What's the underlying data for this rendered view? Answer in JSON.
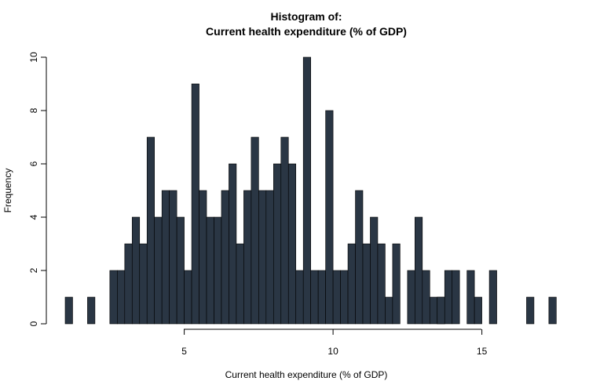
{
  "chart_data": {
    "type": "bar",
    "title_line1": "Histogram of:",
    "title_line2": "Current health expenditure (% of GDP)",
    "xlabel": "Current health expenditure (% of GDP)",
    "ylabel": "Frequency",
    "xlim": [
      1,
      17.25
    ],
    "ylim": [
      0,
      10
    ],
    "x_ticks": [
      5,
      10,
      15
    ],
    "y_ticks": [
      0,
      2,
      4,
      6,
      8,
      10
    ],
    "bin_start": 1.0,
    "bin_width": 0.25,
    "values": [
      1,
      0,
      0,
      1,
      0,
      0,
      2,
      2,
      3,
      4,
      3,
      7,
      4,
      5,
      5,
      4,
      2,
      9,
      5,
      4,
      4,
      5,
      6,
      3,
      5,
      7,
      5,
      5,
      6,
      7,
      6,
      2,
      10,
      2,
      2,
      8,
      2,
      2,
      3,
      5,
      3,
      4,
      3,
      1,
      3,
      0,
      2,
      4,
      2,
      1,
      1,
      2,
      2,
      0,
      2,
      1,
      0,
      2,
      0,
      0,
      0,
      0,
      0,
      0,
      0,
      0,
      0,
      0,
      0,
      0,
      0,
      0,
      0,
      0,
      0,
      0,
      0,
      0,
      0,
      0,
      0,
      0,
      0,
      0,
      0,
      0,
      0,
      0,
      0,
      0,
      0,
      0,
      0,
      0,
      0,
      0,
      0,
      0,
      0,
      0,
      0,
      0,
      0,
      0,
      0,
      0,
      0,
      0,
      0,
      0,
      0,
      0,
      0,
      0,
      0,
      0,
      0,
      0,
      0,
      0,
      0,
      0,
      0,
      0,
      0,
      0,
      0,
      0,
      0,
      0,
      0,
      0,
      0,
      0,
      0,
      0,
      0,
      0,
      0,
      0,
      0,
      0,
      0,
      0,
      0,
      0,
      0,
      0,
      0,
      0,
      0,
      0,
      0,
      0,
      0,
      0,
      0,
      0,
      0,
      0,
      0,
      0,
      0,
      0,
      0,
      0,
      0,
      0,
      0,
      0,
      0
    ],
    "extra_bars": [
      {
        "x": 13.5,
        "value": 1
      },
      {
        "x": 16.5,
        "value": 1
      },
      {
        "x": 17.25,
        "value": 1
      }
    ],
    "bar_color": "#2a3644"
  }
}
